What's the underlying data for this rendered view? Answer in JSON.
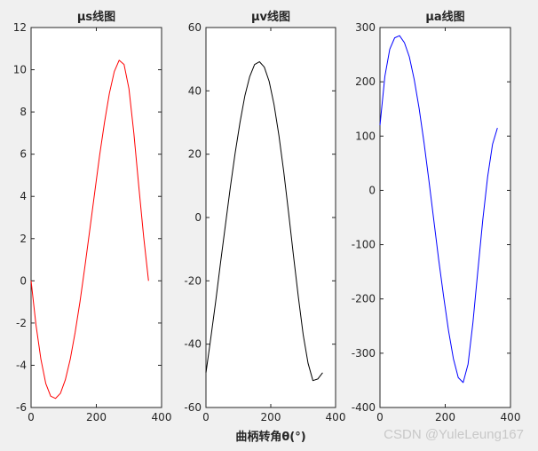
{
  "watermark": "CSDN @YuleLeung167",
  "chart_data": [
    {
      "type": "line",
      "title": "μs线图",
      "xlabel": "",
      "ylabel": "",
      "xlim": [
        0,
        400
      ],
      "ylim": [
        -6,
        12
      ],
      "xticks": [
        0,
        200,
        400
      ],
      "yticks": [
        -6,
        -4,
        -2,
        0,
        2,
        4,
        6,
        8,
        10,
        12
      ],
      "grid": false,
      "series": [
        {
          "color": "#ff0000",
          "x": [
            0,
            15,
            30,
            45,
            60,
            75,
            90,
            105,
            120,
            135,
            150,
            165,
            180,
            195,
            210,
            225,
            240,
            255,
            270,
            285,
            300,
            315,
            330,
            345,
            360
          ],
          "y": [
            0,
            -2.08,
            -3.7,
            -4.86,
            -5.46,
            -5.57,
            -5.33,
            -4.69,
            -3.72,
            -2.45,
            -0.98,
            0.68,
            2.42,
            4.18,
            5.93,
            7.5,
            8.88,
            9.91,
            10.45,
            10.25,
            9.1,
            7.0,
            4.5,
            2.1,
            0
          ]
        }
      ]
    },
    {
      "type": "line",
      "title": "μv线图",
      "xlabel": "曲柄转角θ(°)",
      "ylabel": "",
      "xlim": [
        0,
        400
      ],
      "ylim": [
        -60,
        60
      ],
      "xticks": [
        0,
        200,
        400
      ],
      "yticks": [
        -60,
        -40,
        -20,
        0,
        20,
        40,
        60
      ],
      "grid": false,
      "series": [
        {
          "color": "#000000",
          "x": [
            0,
            15,
            30,
            45,
            60,
            75,
            90,
            105,
            120,
            135,
            150,
            165,
            180,
            195,
            210,
            225,
            240,
            255,
            270,
            285,
            300,
            315,
            330,
            345,
            360
          ],
          "y": [
            -49,
            -38,
            -26.5,
            -14.2,
            -2.4,
            9.4,
            20.3,
            30.0,
            38.4,
            44.5,
            48.3,
            49.2,
            47.5,
            43.0,
            35.7,
            26.0,
            14.5,
            1.5,
            -12.0,
            -25.0,
            -37.0,
            -46.0,
            -51.5,
            -51.0,
            -49.0
          ]
        }
      ]
    },
    {
      "type": "line",
      "title": "μa线图",
      "xlabel": "",
      "ylabel": "",
      "xlim": [
        0,
        400
      ],
      "ylim": [
        -400,
        300
      ],
      "xticks": [
        0,
        200,
        400
      ],
      "yticks": [
        -400,
        -300,
        -200,
        -100,
        0,
        100,
        200,
        300
      ],
      "grid": false,
      "series": [
        {
          "color": "#0000ff",
          "x": [
            0,
            15,
            30,
            45,
            60,
            75,
            90,
            105,
            120,
            135,
            150,
            165,
            180,
            195,
            210,
            225,
            240,
            255,
            270,
            285,
            300,
            315,
            330,
            345,
            360
          ],
          "y": [
            120,
            210,
            260,
            281,
            285,
            272,
            246,
            204,
            151,
            88,
            18,
            -55,
            -128,
            -195,
            -258,
            -310,
            -345,
            -354,
            -320,
            -243,
            -148,
            -55,
            25,
            85,
            115
          ]
        }
      ]
    }
  ]
}
